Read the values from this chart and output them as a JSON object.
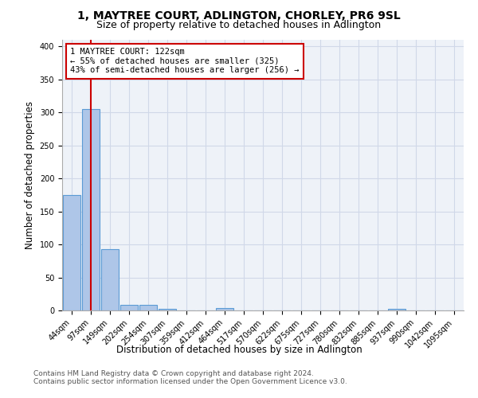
{
  "title": "1, MAYTREE COURT, ADLINGTON, CHORLEY, PR6 9SL",
  "subtitle": "Size of property relative to detached houses in Adlington",
  "xlabel": "Distribution of detached houses by size in Adlington",
  "ylabel": "Number of detached properties",
  "bin_labels": [
    "44sqm",
    "97sqm",
    "149sqm",
    "202sqm",
    "254sqm",
    "307sqm",
    "359sqm",
    "412sqm",
    "464sqm",
    "517sqm",
    "570sqm",
    "622sqm",
    "675sqm",
    "727sqm",
    "780sqm",
    "832sqm",
    "885sqm",
    "937sqm",
    "990sqm",
    "1042sqm",
    "1095sqm"
  ],
  "bar_values": [
    175,
    305,
    93,
    8,
    9,
    3,
    0,
    0,
    4,
    0,
    0,
    0,
    0,
    0,
    0,
    0,
    0,
    3,
    0,
    0,
    0
  ],
  "bar_color": "#aec6e8",
  "bar_edge_color": "#5b9bd5",
  "property_sqm": 122,
  "annotation_text": "1 MAYTREE COURT: 122sqm\n← 55% of detached houses are smaller (325)\n43% of semi-detached houses are larger (256) →",
  "annotation_box_color": "#ffffff",
  "annotation_box_edge_color": "#cc0000",
  "red_line_color": "#cc0000",
  "grid_color": "#d0d8e8",
  "background_color": "#eef2f8",
  "footer_text": "Contains HM Land Registry data © Crown copyright and database right 2024.\nContains public sector information licensed under the Open Government Licence v3.0.",
  "ylim": [
    0,
    410
  ],
  "title_fontsize": 10,
  "subtitle_fontsize": 9,
  "axis_label_fontsize": 8.5,
  "tick_fontsize": 7,
  "annotation_fontsize": 7.5,
  "footer_fontsize": 6.5
}
